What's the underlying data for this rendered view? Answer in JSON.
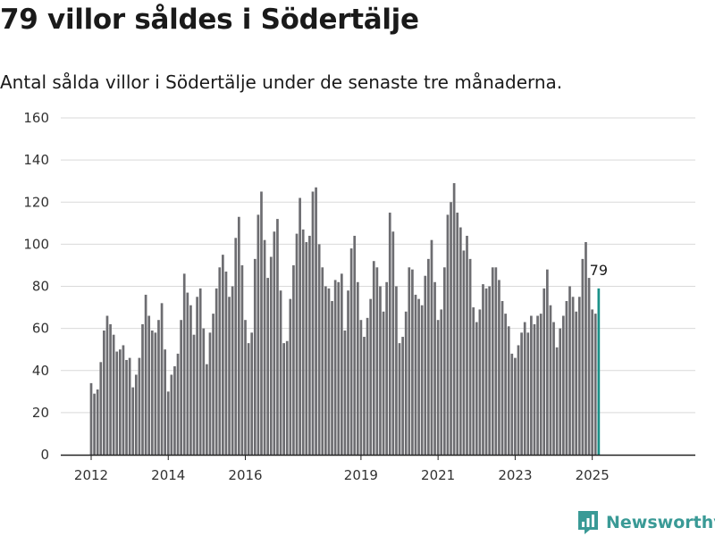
{
  "header": {
    "title": "79 villor såldes i Södertälje",
    "subtitle": "Antal sålda villor i Södertälje under de senaste tre månaderna."
  },
  "brand": {
    "name": "Newsworthy",
    "color": "#3a9a96",
    "icon": "newsworthy-logo-icon"
  },
  "colors": {
    "bar": "#6d6d71",
    "highlight": "#1a9188",
    "grid": "#d9d9d9",
    "axis": "#222222"
  },
  "chart_data": {
    "type": "bar",
    "title": "79 villor såldes i Södertälje",
    "subtitle": "Antal sålda villor i Södertälje under de senaste tre månaderna.",
    "xlabel": "",
    "ylabel": "",
    "ylim": [
      0,
      160
    ],
    "yticks": [
      0,
      20,
      40,
      60,
      80,
      100,
      120,
      140,
      160
    ],
    "x_tick_labels": [
      "2012",
      "2014",
      "2016",
      "2019",
      "2021",
      "2023",
      "2025"
    ],
    "grid": true,
    "frequency": "monthly, rolling three-month total",
    "start": "2012-01",
    "end": "2025-03",
    "highlight_last": true,
    "last_value_label": "79",
    "values": [
      34,
      29,
      31,
      44,
      59,
      66,
      62,
      57,
      49,
      50,
      52,
      45,
      46,
      32,
      38,
      46,
      62,
      76,
      66,
      59,
      58,
      64,
      72,
      50,
      30,
      38,
      42,
      48,
      64,
      86,
      77,
      71,
      57,
      75,
      79,
      60,
      43,
      58,
      67,
      79,
      89,
      95,
      87,
      75,
      80,
      103,
      113,
      90,
      64,
      53,
      58,
      93,
      114,
      125,
      102,
      84,
      94,
      106,
      112,
      78,
      53,
      54,
      74,
      90,
      105,
      122,
      107,
      101,
      104,
      125,
      127,
      100,
      89,
      80,
      79,
      73,
      83,
      82,
      86,
      59,
      78,
      98,
      104,
      82,
      64,
      56,
      65,
      74,
      92,
      89,
      80,
      68,
      82,
      115,
      106,
      80,
      53,
      56,
      68,
      89,
      88,
      76,
      74,
      71,
      85,
      93,
      102,
      82,
      64,
      69,
      89,
      114,
      120,
      129,
      115,
      108,
      97,
      104,
      93,
      70,
      63,
      69,
      81,
      79,
      80,
      89,
      89,
      83,
      73,
      67,
      61,
      48,
      46,
      52,
      58,
      63,
      58,
      66,
      62,
      66,
      67,
      79,
      88,
      71,
      63,
      51,
      60,
      66,
      73,
      80,
      75,
      68,
      75,
      93,
      101,
      84,
      69,
      67,
      79
    ]
  }
}
